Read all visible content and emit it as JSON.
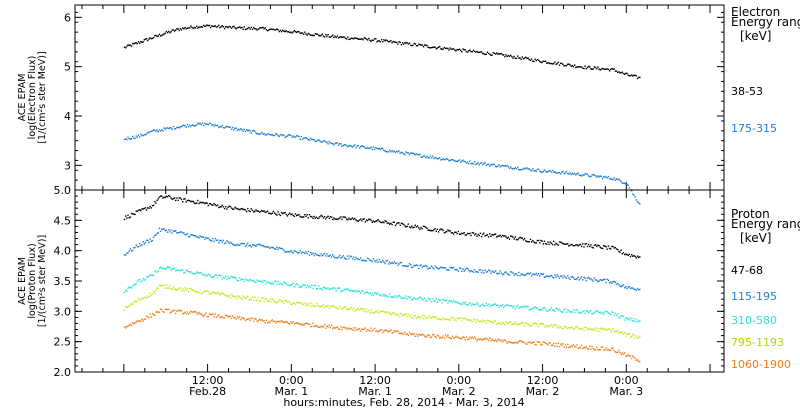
{
  "chart_data": [
    {
      "type": "line",
      "panel": "electron",
      "ylabel_lines": [
        "ACE EPAM",
        "log(Electron Flux)",
        "[1/(cm²s ster MeV)]"
      ],
      "ylim": [
        2.5,
        6.25
      ],
      "yticks": [
        3,
        4,
        5,
        6
      ],
      "legend": {
        "title_lines": [
          "Electron",
          "Energy range",
          "[keV]"
        ],
        "placement": "right"
      },
      "x_unit": "hours since Feb. 28, 2014 00:00",
      "series": [
        {
          "name": "38-53",
          "color": "#000000",
          "x": [
            0,
            2,
            3,
            4,
            6,
            8,
            10,
            12,
            16,
            20,
            24,
            30,
            36,
            42,
            48,
            54,
            60,
            66,
            70,
            72,
            74
          ],
          "y": [
            5.4,
            5.5,
            5.55,
            5.6,
            5.7,
            5.78,
            5.82,
            5.84,
            5.8,
            5.78,
            5.72,
            5.62,
            5.55,
            5.45,
            5.35,
            5.25,
            5.12,
            5.0,
            4.95,
            4.85,
            4.78
          ]
        },
        {
          "name": "175-315",
          "color": "#1f7fd4",
          "x": [
            0,
            2,
            4,
            6,
            8,
            10,
            12,
            16,
            20,
            24,
            30,
            36,
            42,
            48,
            54,
            60,
            66,
            70,
            72,
            73,
            74
          ],
          "y": [
            3.55,
            3.6,
            3.7,
            3.75,
            3.8,
            3.84,
            3.85,
            3.75,
            3.65,
            3.6,
            3.45,
            3.35,
            3.22,
            3.1,
            3.0,
            2.9,
            2.82,
            2.75,
            2.65,
            2.4,
            2.2
          ]
        }
      ]
    },
    {
      "type": "line",
      "panel": "proton",
      "ylabel_lines": [
        "ACE EPAM",
        "log(Proton Flux)",
        "[1/(cm²s ster MeV)]"
      ],
      "ylim": [
        2.0,
        5.0
      ],
      "yticks": [
        2.0,
        2.5,
        3.0,
        3.5,
        4.0,
        4.5,
        5.0
      ],
      "legend": {
        "title_lines": [
          "Proton",
          "Energy range",
          "[keV]"
        ],
        "placement": "right"
      },
      "x_unit": "hours since Feb. 28, 2014 00:00",
      "series": [
        {
          "name": "47-68",
          "color": "#000000",
          "x": [
            0,
            2,
            4,
            5,
            6,
            8,
            10,
            12,
            16,
            20,
            24,
            30,
            36,
            42,
            48,
            54,
            60,
            66,
            70,
            72,
            74
          ],
          "y": [
            4.55,
            4.65,
            4.75,
            4.88,
            4.9,
            4.85,
            4.82,
            4.78,
            4.7,
            4.65,
            4.6,
            4.55,
            4.5,
            4.4,
            4.3,
            4.25,
            4.15,
            4.1,
            4.05,
            3.95,
            3.9
          ]
        },
        {
          "name": "115-195",
          "color": "#1f7fd4",
          "x": [
            0,
            2,
            4,
            5,
            6,
            8,
            10,
            12,
            16,
            20,
            24,
            30,
            36,
            42,
            48,
            54,
            60,
            66,
            70,
            72,
            74
          ],
          "y": [
            3.95,
            4.1,
            4.2,
            4.35,
            4.35,
            4.3,
            4.25,
            4.2,
            4.12,
            4.08,
            4.0,
            3.92,
            3.85,
            3.75,
            3.7,
            3.65,
            3.6,
            3.55,
            3.5,
            3.4,
            3.38
          ]
        },
        {
          "name": "310-580",
          "color": "#2ee0d8",
          "x": [
            0,
            2,
            4,
            5,
            6,
            8,
            10,
            12,
            16,
            20,
            24,
            30,
            36,
            42,
            48,
            54,
            60,
            66,
            70,
            72,
            74
          ],
          "y": [
            3.35,
            3.5,
            3.6,
            3.72,
            3.72,
            3.68,
            3.65,
            3.6,
            3.55,
            3.5,
            3.45,
            3.38,
            3.3,
            3.22,
            3.15,
            3.1,
            3.05,
            3.0,
            2.98,
            2.88,
            2.85
          ]
        },
        {
          "name": "795-1193",
          "color": "#c6e620",
          "x": [
            0,
            2,
            4,
            5,
            6,
            8,
            10,
            12,
            16,
            20,
            24,
            30,
            36,
            42,
            48,
            54,
            60,
            66,
            70,
            72,
            74
          ],
          "y": [
            3.05,
            3.2,
            3.3,
            3.42,
            3.42,
            3.38,
            3.35,
            3.32,
            3.25,
            3.2,
            3.15,
            3.08,
            3.0,
            2.92,
            2.88,
            2.82,
            2.78,
            2.72,
            2.7,
            2.62,
            2.58
          ]
        },
        {
          "name": "1060-1900",
          "color": "#f07e1a",
          "x": [
            0,
            2,
            4,
            5,
            6,
            8,
            10,
            12,
            16,
            20,
            24,
            30,
            36,
            42,
            48,
            54,
            60,
            66,
            70,
            72,
            74
          ],
          "y": [
            2.75,
            2.85,
            2.95,
            3.02,
            3.02,
            3.0,
            2.98,
            2.95,
            2.9,
            2.85,
            2.82,
            2.75,
            2.7,
            2.62,
            2.58,
            2.52,
            2.48,
            2.42,
            2.38,
            2.28,
            2.2
          ]
        }
      ]
    }
  ],
  "xaxis": {
    "range_hours": [
      -7,
      86
    ],
    "ticks": [
      {
        "hours": 12,
        "line1": "12:00",
        "line2": "Feb.28"
      },
      {
        "hours": 24,
        "line1": "0:00",
        "line2": "Mar. 1"
      },
      {
        "hours": 36,
        "line1": "12:00",
        "line2": "Mar. 1"
      },
      {
        "hours": 48,
        "line1": "0:00",
        "line2": "Mar. 2"
      },
      {
        "hours": 60,
        "line1": "12:00",
        "line2": "Mar. 2"
      },
      {
        "hours": 72,
        "line1": "0:00",
        "line2": "Mar. 3"
      }
    ],
    "label": "hours:minutes, Feb. 28, 2014 - Mar.  3, 2014"
  }
}
